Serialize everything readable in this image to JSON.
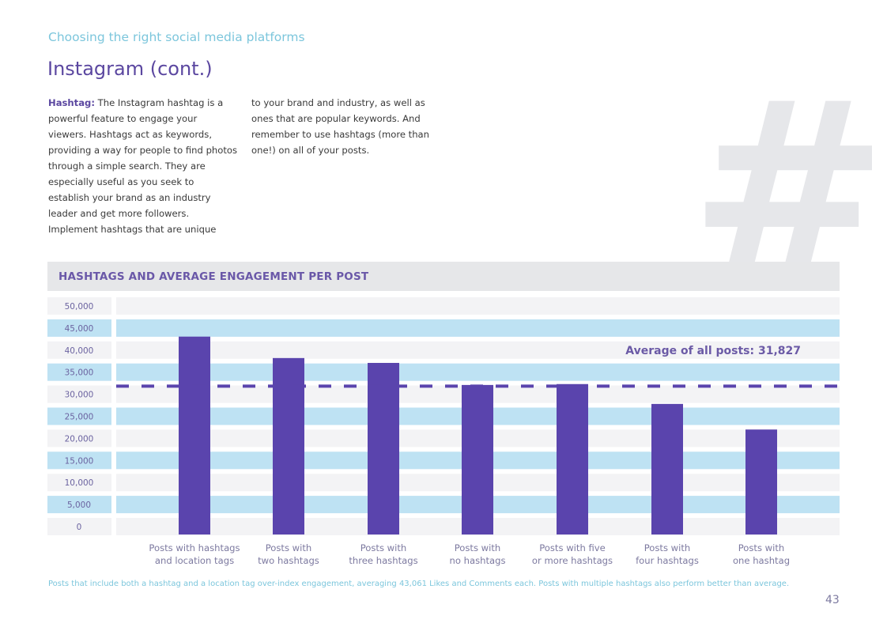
{
  "header": {
    "section": "Choosing the right social media platforms",
    "title": "Instagram (cont.)"
  },
  "body": {
    "lead": "Hashtag:",
    "col1": " The Instagram hashtag is a powerful feature to engage your viewers. Hashtags act as keywords, providing a way for people to find photos through a simple search. They are especially useful as you seek to establish your brand as an industry leader and get more followers. Implement hashtags that are unique",
    "col2": "to your brand and industry, as well as ones that are popular keywords. And remember to use hashtags (more than one!) on all of your posts."
  },
  "decoration": {
    "glyph": "#"
  },
  "chart_data": {
    "type": "bar",
    "title": "HASHTAGS AND AVERAGE ENGAGEMENT PER POST",
    "categories": [
      "Posts with hashtags and location tags",
      "Posts with two hashtags",
      "Posts with three hashtags",
      "Posts with no hashtags",
      "Posts with five or more hashtags",
      "Posts with four hashtags",
      "Posts with one hashtag"
    ],
    "category_lines": [
      [
        "Posts with hashtags",
        "and location tags"
      ],
      [
        "Posts with",
        "two hashtags"
      ],
      [
        "Posts with",
        "three hashtags"
      ],
      [
        "Posts with",
        "no hashtags"
      ],
      [
        "Posts with five",
        "or more hashtags"
      ],
      [
        "Posts with",
        "four hashtags"
      ],
      [
        "Posts with",
        "one hashtag"
      ]
    ],
    "values": [
      43061,
      38200,
      37100,
      32100,
      32300,
      27800,
      22000
    ],
    "ylim": [
      0,
      50000
    ],
    "yticks": [
      "50,000",
      "45,000",
      "40,000",
      "35,000",
      "30,000",
      "25,000",
      "20,000",
      "15,000",
      "10,000",
      "5,000",
      "0"
    ],
    "reference_line": {
      "value": 31827,
      "label": "Average of all posts: 31,827",
      "style": "dashed"
    },
    "grid": "alternating bands",
    "colors": {
      "bar": "#5a44ad",
      "band_blue": "#bee2f3",
      "band_gray": "#f3f3f5",
      "line": "#5a44ad"
    }
  },
  "footer": {
    "note": "Posts that include both a hashtag and a location tag over-index engagement, averaging 43,061 Likes and Comments each. Posts with multiple hashtags also perform better than average.",
    "page_number": "43"
  }
}
